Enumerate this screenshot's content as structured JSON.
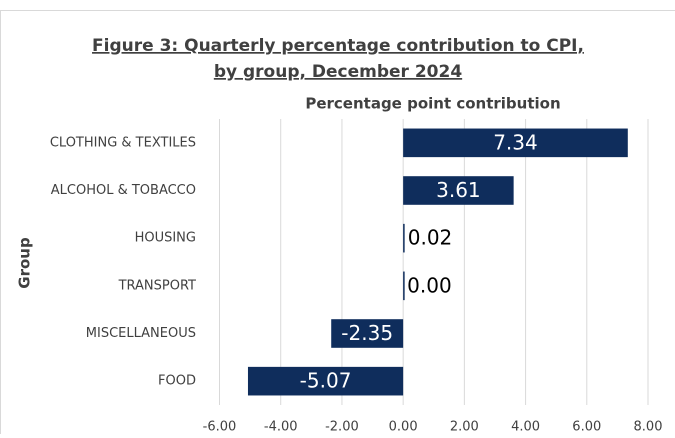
{
  "chart_data": {
    "type": "barh",
    "title": "Figure 3: Quarterly percentage contribution to CPI,",
    "subtitle": "by group, December 2024",
    "x_label": "Percentage point contribution",
    "y_label": "Group",
    "categories": [
      "CLOTHING & TEXTILES",
      "ALCOHOL & TOBACCO",
      "HOUSING",
      "TRANSPORT",
      "MISCELLANEOUS",
      "FOOD"
    ],
    "values": [
      7.34,
      3.61,
      0.02,
      0.0,
      -2.35,
      -5.07
    ],
    "value_labels": [
      "7.34",
      "3.61",
      "0.02",
      "0.00",
      "-2.35",
      "-5.07"
    ],
    "color": "#0f2d5c",
    "xlim": [
      -6,
      8
    ],
    "xticks": [
      {
        "value": -6,
        "label": "-6.00"
      },
      {
        "value": -4,
        "label": "-4.00"
      },
      {
        "value": -2,
        "label": "-2.00"
      },
      {
        "value": 0,
        "label": "0.00"
      },
      {
        "value": 2,
        "label": "2.00"
      },
      {
        "value": 4,
        "label": "4.00"
      },
      {
        "value": 6,
        "label": "6.00"
      },
      {
        "value": 8,
        "label": "8.00"
      }
    ],
    "grid": true
  }
}
